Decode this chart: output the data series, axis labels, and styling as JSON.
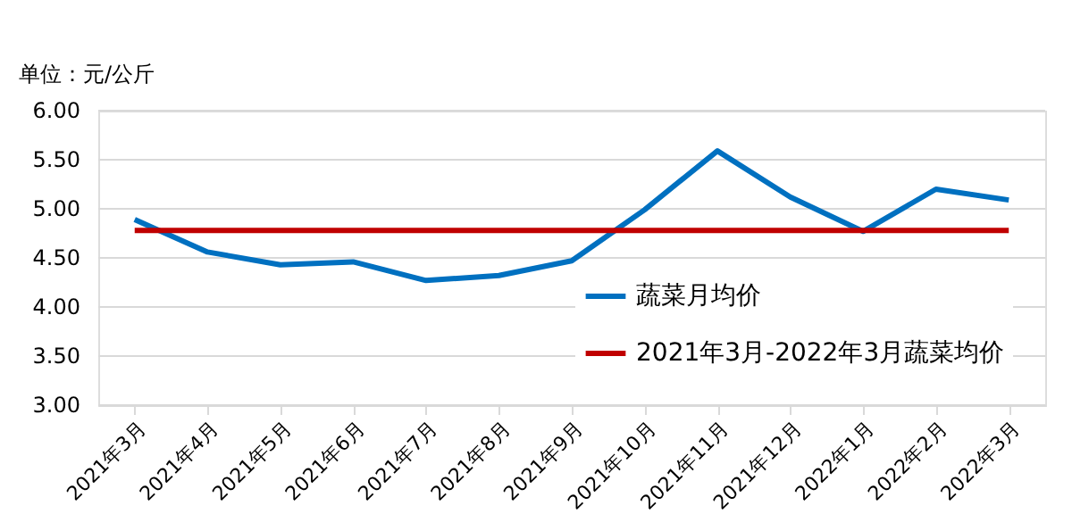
{
  "chart_data": {
    "type": "line",
    "ylabel": "单位：元/公斤",
    "categories": [
      "2021年3月",
      "2021年4月",
      "2021年5月",
      "2021年6月",
      "2021年7月",
      "2021年8月",
      "2021年9月",
      "2021年10月",
      "2021年11月",
      "2021年12月",
      "2022年1月",
      "2022年2月",
      "2022年3月"
    ],
    "series": [
      {
        "name": "蔬菜月均价",
        "color": "#0070c0",
        "values": [
          4.89,
          4.56,
          4.43,
          4.46,
          4.27,
          4.32,
          4.47,
          4.99,
          5.59,
          5.12,
          4.77,
          5.2,
          5.09
        ]
      },
      {
        "name": "2021年3月-2022年3月蔬菜均价",
        "color": "#c00000",
        "values": [
          4.78,
          4.78,
          4.78,
          4.78,
          4.78,
          4.78,
          4.78,
          4.78,
          4.78,
          4.78,
          4.78,
          4.78,
          4.78
        ]
      }
    ],
    "ylim": [
      3,
      6
    ],
    "yticks": [
      {
        "value": 3,
        "label": "3.00"
      },
      {
        "value": 3.5,
        "label": "3.50"
      },
      {
        "value": 4,
        "label": "4.00"
      },
      {
        "value": 4.5,
        "label": "4.50"
      },
      {
        "value": 5,
        "label": "5.00"
      },
      {
        "value": 5.5,
        "label": "5.50"
      },
      {
        "value": 6,
        "label": "6.00"
      }
    ],
    "grid": "y",
    "legend": "bottom right",
    "marker": "none",
    "line_style": "solid"
  }
}
